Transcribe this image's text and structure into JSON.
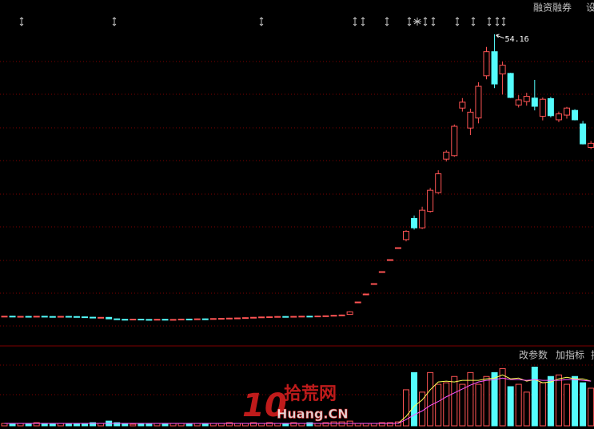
{
  "chart_data": {
    "type": "candlestick",
    "ylim": [
      1.5,
      60
    ],
    "volume_ylim": [
      0,
      100
    ],
    "up_color": "#ff5454",
    "down_color": "#54fcfc",
    "ma5_color": "#ffff54",
    "ma10_color": "#ff54ff",
    "open": [
      6.1,
      6.15,
      6.05,
      6.12,
      6.08,
      6.14,
      6.1,
      6.06,
      6.12,
      6.09,
      6.04,
      5.98,
      5.9,
      5.95,
      5.7,
      5.62,
      5.58,
      5.65,
      5.6,
      5.55,
      5.62,
      5.58,
      5.6,
      5.66,
      5.63,
      5.7,
      5.68,
      5.75,
      5.78,
      5.82,
      5.85,
      5.9,
      5.96,
      6.02,
      6.05,
      6.1,
      6.08,
      6.12,
      6.15,
      6.1,
      6.18,
      6.22,
      6.3,
      6.45,
      8.57,
      9.93,
      11.7,
      13.74,
      15.78,
      17.82,
      19.2,
      22.8,
      21.2,
      24.0,
      27.2,
      32.9,
      33.5,
      41.6,
      38.2,
      39.9,
      47.1,
      51.2,
      47.4,
      47.5,
      42.1,
      42.7,
      43.3,
      40.2,
      43.2,
      39.6,
      40.4,
      41.2,
      38.9,
      34.9
    ],
    "high": [
      6.2,
      6.2,
      6.17,
      6.17,
      6.19,
      6.19,
      6.15,
      6.17,
      6.17,
      6.14,
      6.09,
      6.03,
      6.0,
      6.0,
      5.75,
      5.67,
      5.7,
      5.7,
      5.65,
      5.67,
      5.67,
      5.65,
      5.71,
      5.71,
      5.75,
      5.75,
      5.8,
      5.83,
      5.87,
      5.9,
      5.95,
      6.01,
      6.07,
      6.1,
      6.15,
      6.15,
      6.17,
      6.2,
      6.2,
      6.23,
      6.27,
      6.35,
      6.41,
      7.0,
      8.57,
      9.93,
      11.7,
      13.74,
      15.78,
      17.82,
      20.8,
      23.3,
      24.8,
      28.0,
      31.0,
      34.4,
      38.8,
      43.3,
      41.5,
      46.0,
      52.0,
      54.16,
      49.5,
      47.6,
      43.8,
      44.2,
      46.4,
      43.4,
      43.5,
      41.0,
      41.8,
      41.4,
      39.4,
      36.0
    ],
    "low": [
      6.05,
      6.03,
      6.0,
      6.01,
      6.03,
      6.05,
      6.01,
      6.01,
      6.03,
      5.99,
      5.93,
      5.87,
      5.85,
      5.65,
      5.57,
      5.53,
      5.53,
      5.55,
      5.5,
      5.5,
      5.53,
      5.53,
      5.55,
      5.58,
      5.58,
      5.63,
      5.63,
      5.7,
      5.73,
      5.77,
      5.8,
      5.85,
      5.91,
      5.97,
      6.0,
      6.03,
      6.03,
      6.07,
      6.05,
      6.05,
      6.13,
      6.17,
      6.25,
      6.4,
      8.57,
      9.93,
      11.7,
      13.74,
      15.78,
      17.82,
      18.9,
      20.9,
      21.0,
      23.8,
      27.0,
      32.5,
      33.3,
      41.0,
      37.0,
      39.0,
      46.5,
      45.0,
      43.9,
      43.3,
      41.7,
      42.0,
      41.2,
      39.5,
      40.0,
      39.2,
      39.8,
      39.5,
      35.4,
      34.6
    ],
    "close": [
      6.15,
      6.08,
      6.12,
      6.06,
      6.14,
      6.1,
      6.06,
      6.12,
      6.08,
      6.04,
      5.98,
      5.92,
      5.95,
      5.7,
      5.62,
      5.58,
      5.65,
      5.6,
      5.55,
      5.62,
      5.58,
      5.6,
      5.66,
      5.63,
      5.7,
      5.68,
      5.75,
      5.78,
      5.82,
      5.85,
      5.9,
      5.96,
      6.02,
      6.05,
      6.1,
      6.08,
      6.12,
      6.15,
      6.1,
      6.18,
      6.22,
      6.3,
      6.36,
      6.9,
      8.57,
      9.93,
      11.7,
      13.74,
      15.78,
      17.82,
      20.6,
      21.2,
      24.2,
      27.6,
      30.4,
      34.1,
      38.5,
      42.6,
      40.9,
      45.3,
      51.2,
      45.7,
      48.9,
      43.4,
      43.0,
      43.6,
      41.9,
      43.1,
      40.3,
      40.6,
      41.6,
      39.6,
      35.5,
      35.6
    ],
    "volume": [
      3,
      2,
      3,
      2,
      4,
      3,
      2,
      3,
      2,
      3,
      2,
      4,
      3,
      6,
      4,
      3,
      2,
      3,
      2,
      3,
      2,
      3,
      3,
      2,
      3,
      2,
      3,
      3,
      4,
      3,
      3,
      4,
      3,
      4,
      3,
      3,
      4,
      3,
      4,
      3,
      4,
      5,
      5,
      6,
      3,
      3,
      3,
      4,
      4,
      5,
      46,
      68,
      43,
      68,
      53,
      55,
      63,
      53,
      68,
      53,
      63,
      68,
      73,
      50,
      53,
      43,
      75,
      55,
      63,
      65,
      53,
      63,
      55,
      48
    ],
    "ma5": [
      3,
      3,
      3,
      3,
      3,
      3,
      3,
      3,
      3,
      3,
      3,
      3,
      3,
      3,
      3,
      3,
      3,
      3,
      3,
      3,
      3,
      3,
      3,
      3,
      3,
      3,
      3,
      3,
      3,
      3,
      3,
      3,
      3,
      3,
      3,
      3,
      3,
      3,
      3,
      3,
      3,
      3,
      3,
      3,
      3,
      3,
      3,
      3,
      3,
      3,
      12,
      25,
      33,
      46,
      56,
      57,
      56,
      58,
      58,
      58,
      60,
      61,
      65,
      60,
      61,
      57,
      59,
      55,
      56,
      60,
      62,
      60,
      60,
      57
    ],
    "ma10": [
      3,
      3,
      3,
      3,
      3,
      3,
      3,
      3,
      3,
      3,
      3,
      3,
      3,
      3,
      3,
      3,
      3,
      3,
      3,
      3,
      3,
      3,
      3,
      3,
      3,
      3,
      3,
      3,
      3,
      3,
      3,
      3,
      3,
      3,
      3,
      3,
      3,
      3,
      3,
      3,
      3,
      3,
      3,
      3,
      3,
      3,
      3,
      3,
      3,
      3,
      8,
      14,
      19,
      26,
      31,
      37,
      42,
      47,
      52,
      56,
      58,
      59,
      61,
      59,
      59,
      58,
      59,
      58,
      58,
      58,
      59,
      59,
      58,
      57
    ]
  },
  "toolbar": [
    "融资融券",
    "设"
  ],
  "indicator_buttons": [
    "改参数",
    "加指标",
    "指"
  ],
  "watermark": {
    "logo": "10",
    "name": "拾荒网",
    "domain": "Huang.CN"
  }
}
